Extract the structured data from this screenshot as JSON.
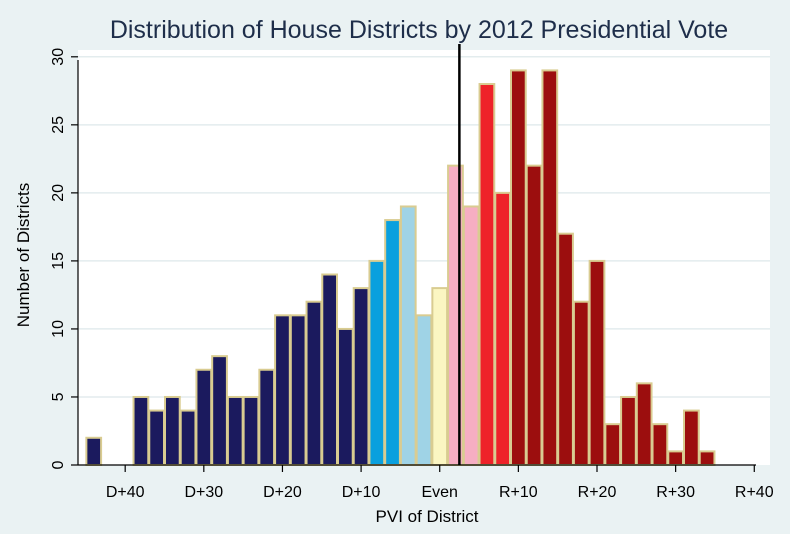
{
  "chart_data": {
    "type": "bar",
    "title": "Distribution of House Districts by 2012 Presidential Vote",
    "xlabel": "PVI of District",
    "ylabel": "Number of Districts",
    "x_ticks": [
      {
        "value": -40,
        "label": "D+40"
      },
      {
        "value": -30,
        "label": "D+30"
      },
      {
        "value": -20,
        "label": "D+20"
      },
      {
        "value": -10,
        "label": "D+10"
      },
      {
        "value": 0,
        "label": "Even"
      },
      {
        "value": 10,
        "label": "R+10"
      },
      {
        "value": 20,
        "label": "R+20"
      },
      {
        "value": 30,
        "label": "R+30"
      },
      {
        "value": 40,
        "label": "R+40"
      }
    ],
    "y_ticks": [
      0,
      5,
      10,
      15,
      20,
      25,
      30
    ],
    "xlim": [
      -46,
      42
    ],
    "ylim": [
      0,
      30.5
    ],
    "bin_width": 2,
    "vertical_line_x": 2.5,
    "grid": true,
    "colors": {
      "background": "#eaf2f3",
      "plot_background": "#ffffff",
      "grid": "#e3ecee",
      "bar_outline": "#d9cc91",
      "dark_blue": "#1b1a5e",
      "blue": "#0aa0de",
      "light_blue": "#9fd3e6",
      "light_yellow": "#fbf6c2",
      "pink": "#f6aec3",
      "red": "#ee2229",
      "dark_red": "#9c0e0e",
      "title": "#1e2e4a"
    },
    "bins": [
      {
        "x": -44,
        "value": 2,
        "color": "dark_blue"
      },
      {
        "x": -38,
        "value": 5,
        "color": "dark_blue"
      },
      {
        "x": -36,
        "value": 4,
        "color": "dark_blue"
      },
      {
        "x": -34,
        "value": 5,
        "color": "dark_blue"
      },
      {
        "x": -32,
        "value": 4,
        "color": "dark_blue"
      },
      {
        "x": -30,
        "value": 7,
        "color": "dark_blue"
      },
      {
        "x": -28,
        "value": 8,
        "color": "dark_blue"
      },
      {
        "x": -26,
        "value": 5,
        "color": "dark_blue"
      },
      {
        "x": -24,
        "value": 5,
        "color": "dark_blue"
      },
      {
        "x": -22,
        "value": 7,
        "color": "dark_blue"
      },
      {
        "x": -20,
        "value": 11,
        "color": "dark_blue"
      },
      {
        "x": -18,
        "value": 11,
        "color": "dark_blue"
      },
      {
        "x": -16,
        "value": 12,
        "color": "dark_blue"
      },
      {
        "x": -14,
        "value": 14,
        "color": "dark_blue"
      },
      {
        "x": -12,
        "value": 10,
        "color": "dark_blue"
      },
      {
        "x": -10,
        "value": 13,
        "color": "dark_blue"
      },
      {
        "x": -8,
        "value": 15,
        "color": "blue"
      },
      {
        "x": -6,
        "value": 18,
        "color": "blue"
      },
      {
        "x": -4,
        "value": 19,
        "color": "light_blue"
      },
      {
        "x": -2,
        "value": 11,
        "color": "light_blue"
      },
      {
        "x": 0,
        "value": 13,
        "color": "light_yellow"
      },
      {
        "x": 2,
        "value": 22,
        "color": "pink"
      },
      {
        "x": 4,
        "value": 19,
        "color": "pink"
      },
      {
        "x": 6,
        "value": 28,
        "color": "red"
      },
      {
        "x": 8,
        "value": 20,
        "color": "red"
      },
      {
        "x": 10,
        "value": 29,
        "color": "dark_red"
      },
      {
        "x": 12,
        "value": 22,
        "color": "dark_red"
      },
      {
        "x": 14,
        "value": 29,
        "color": "dark_red"
      },
      {
        "x": 16,
        "value": 17,
        "color": "dark_red"
      },
      {
        "x": 18,
        "value": 12,
        "color": "dark_red"
      },
      {
        "x": 20,
        "value": 15,
        "color": "dark_red"
      },
      {
        "x": 22,
        "value": 3,
        "color": "dark_red"
      },
      {
        "x": 24,
        "value": 5,
        "color": "dark_red"
      },
      {
        "x": 26,
        "value": 6,
        "color": "dark_red"
      },
      {
        "x": 28,
        "value": 3,
        "color": "dark_red"
      },
      {
        "x": 30,
        "value": 1,
        "color": "dark_red"
      },
      {
        "x": 32,
        "value": 4,
        "color": "dark_red"
      },
      {
        "x": 34,
        "value": 1,
        "color": "dark_red"
      }
    ]
  }
}
